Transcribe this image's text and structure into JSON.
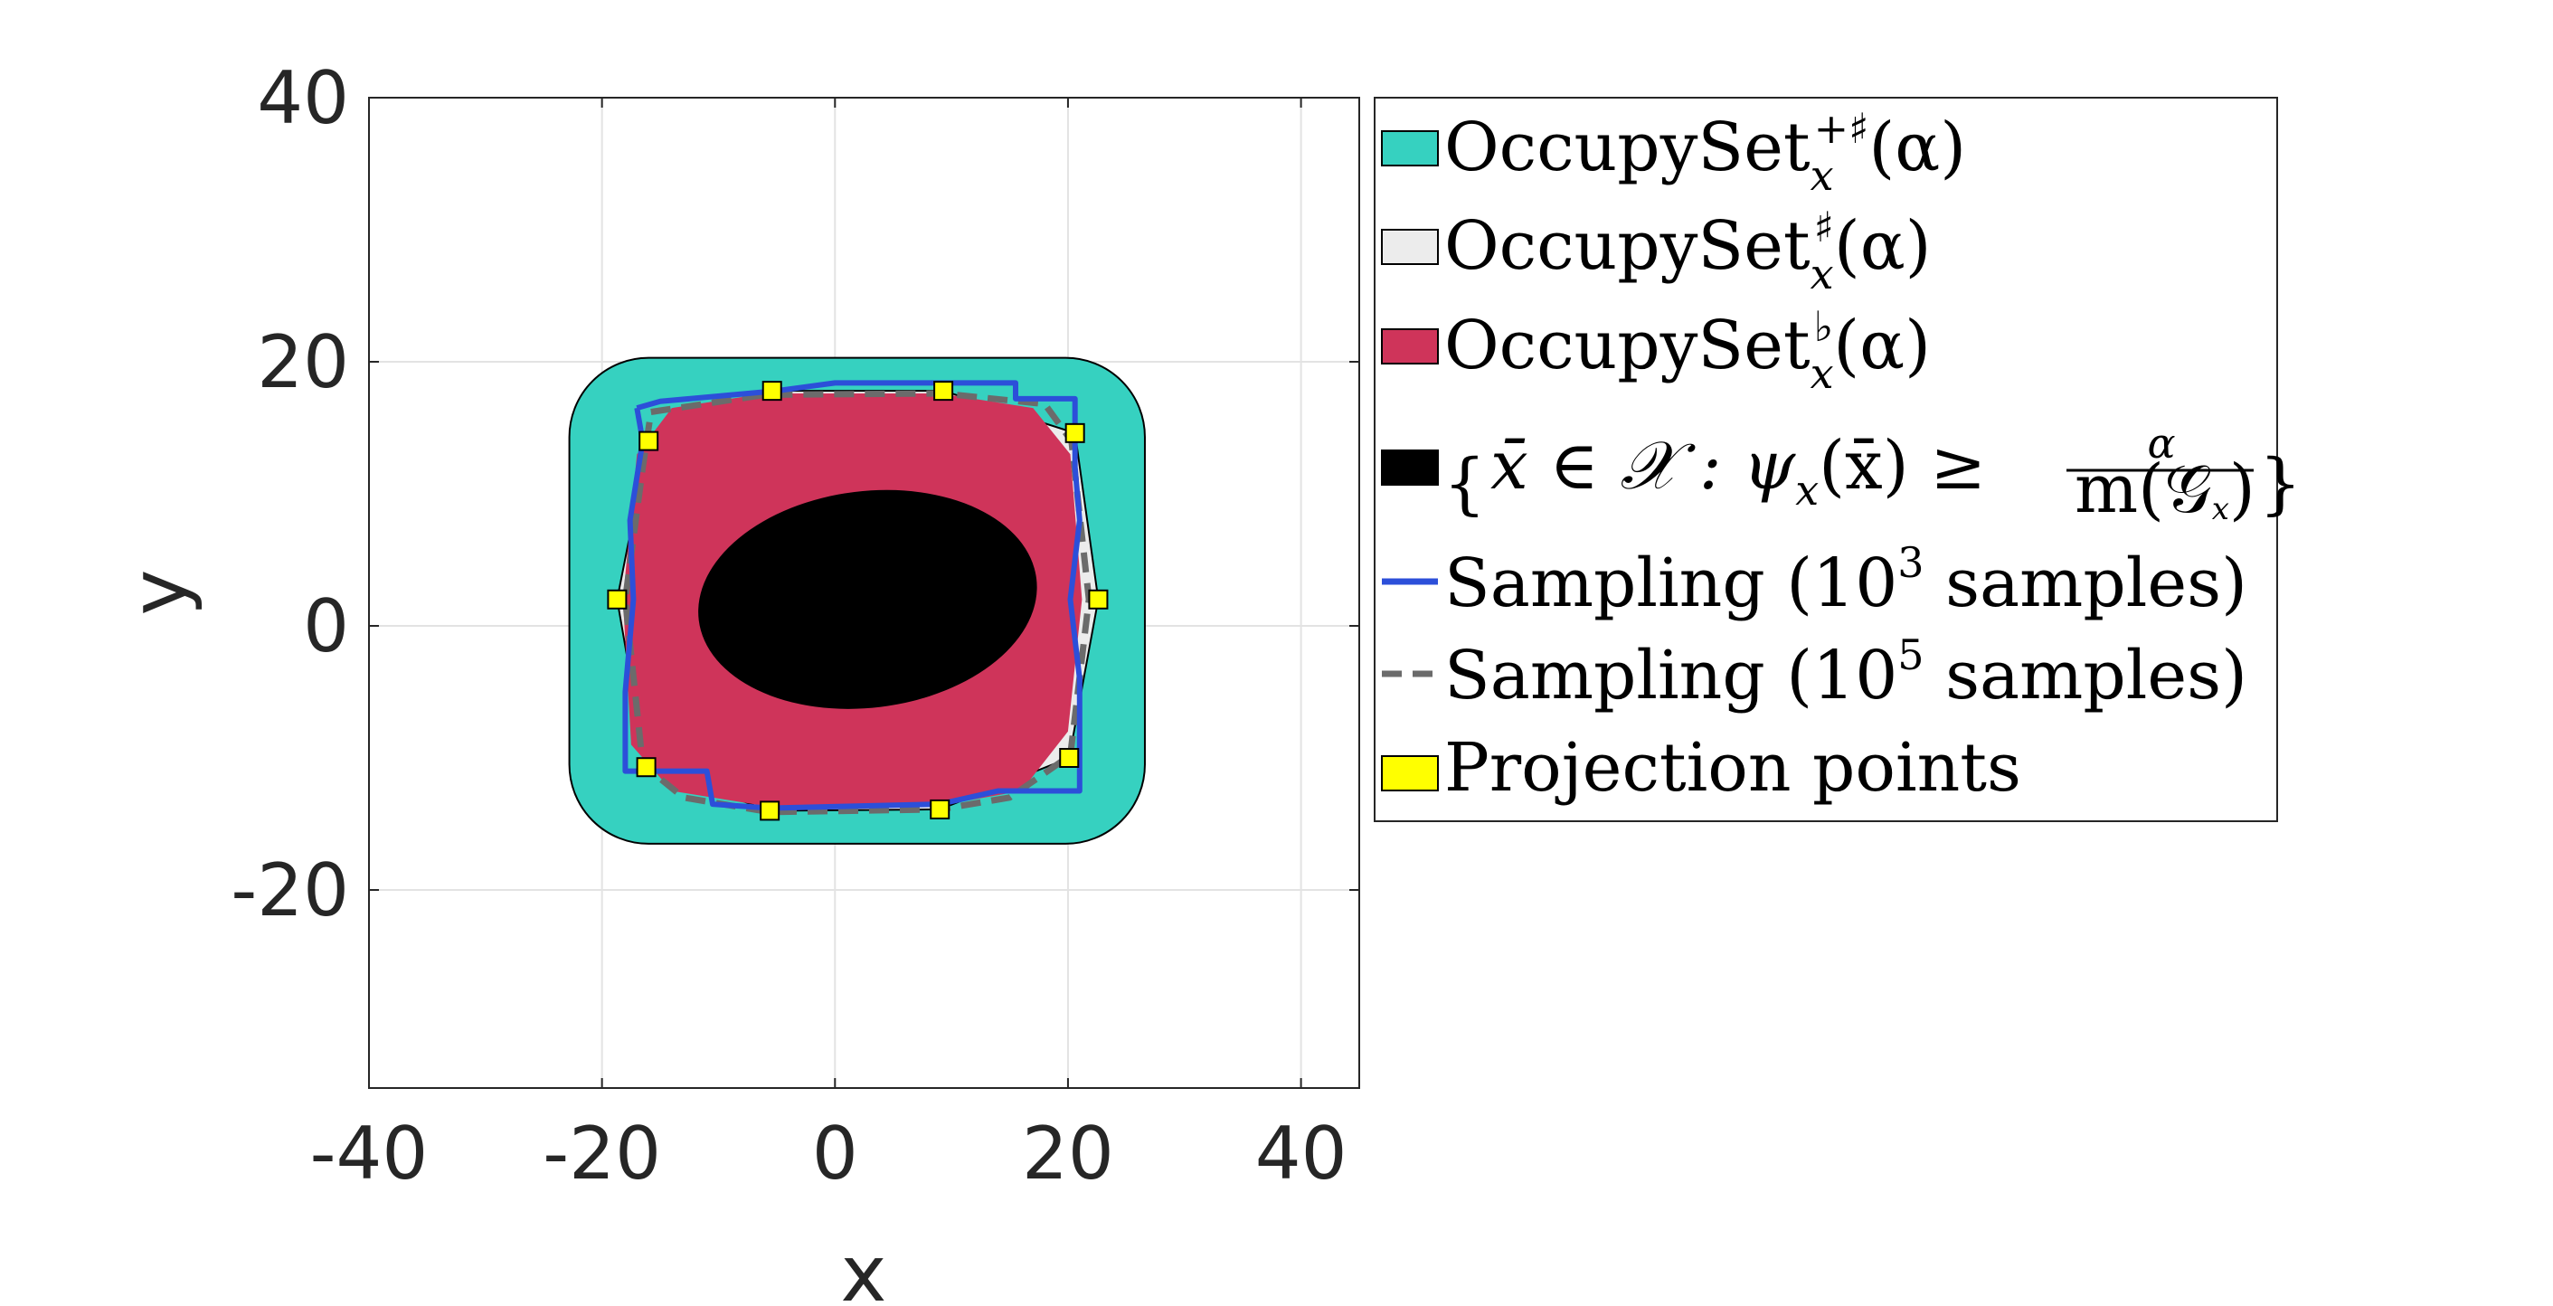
{
  "chart_data": {
    "type": "area",
    "xlabel": "x",
    "ylabel": "y",
    "xlim": [
      -40,
      45
    ],
    "ylim": [
      -35,
      40
    ],
    "xticks": [
      "-40",
      "-20",
      "0",
      "20",
      "40"
    ],
    "yticks": [
      "-20",
      "0",
      "20",
      "40"
    ],
    "xtick_values": [
      -40,
      -20,
      0,
      20,
      40
    ],
    "ytick_values": [
      -20,
      0,
      20,
      40
    ],
    "grid": true,
    "legend_position": "outside-right",
    "colors": {
      "outer": "#36d1c0",
      "inner_hull": "#ececec",
      "under": "#cf345a",
      "superlevel": "#000000",
      "sampling_1e3": "#2c4fd9",
      "sampling_1e5": "#6b6b6b",
      "projection": "#ffff00"
    },
    "series": [
      {
        "key": "outer",
        "name": "OccupySet_x^{+♯}(α)",
        "kind": "rounded-box",
        "x_range": [
          -22.8,
          26.6
        ],
        "y_range": [
          -16.5,
          20.3
        ],
        "corner_radius": 6.8
      },
      {
        "key": "inner_hull",
        "name": "OccupySet_x^{♯}(α)",
        "kind": "polygon",
        "points": [
          [
            -5.4,
            17.8
          ],
          [
            9.3,
            17.8
          ],
          [
            20.6,
            14.6
          ],
          [
            22.6,
            2.0
          ],
          [
            20.1,
            -10.0
          ],
          [
            9.0,
            -13.9
          ],
          [
            -5.6,
            -14.0
          ],
          [
            -16.2,
            -10.7
          ],
          [
            -18.7,
            2.0
          ],
          [
            -16.0,
            14.0
          ]
        ]
      },
      {
        "key": "under",
        "name": "OccupySet_x^{♭}(α)",
        "kind": "polygon",
        "points": [
          [
            -17.0,
            13.0
          ],
          [
            -14.0,
            16.5
          ],
          [
            -6.0,
            17.6
          ],
          [
            9.0,
            17.6
          ],
          [
            17.0,
            16.5
          ],
          [
            20.2,
            13.0
          ],
          [
            21.2,
            2.0
          ],
          [
            20.0,
            -8.0
          ],
          [
            16.0,
            -12.5
          ],
          [
            9.0,
            -13.6
          ],
          [
            -5.6,
            -13.7
          ],
          [
            -14.0,
            -12.5
          ],
          [
            -17.5,
            -9.0
          ],
          [
            -18.2,
            2.0
          ]
        ]
      },
      {
        "key": "superlevel",
        "name": "{x̄ ∈ 𝒳 : ψ_x(x̄) ≥ α / m(𝒢_x)}",
        "kind": "ellipse",
        "center": [
          2.8,
          2.0
        ],
        "radii": [
          14.6,
          8.2
        ],
        "rotation_deg": 7
      },
      {
        "key": "sampling_1e3",
        "name": "Sampling (10^3 samples)",
        "kind": "line",
        "points": [
          [
            -17.0,
            16.5
          ],
          [
            -15.0,
            17.0
          ],
          [
            -5.0,
            17.8
          ],
          [
            0.0,
            18.4
          ],
          [
            15.5,
            18.4
          ],
          [
            15.5,
            17.2
          ],
          [
            20.6,
            17.2
          ],
          [
            20.6,
            12.0
          ],
          [
            21.0,
            8.0
          ],
          [
            20.2,
            2.0
          ],
          [
            21.0,
            -4.0
          ],
          [
            21.0,
            -12.5
          ],
          [
            14.0,
            -12.5
          ],
          [
            9.0,
            -13.5
          ],
          [
            -5.6,
            -13.8
          ],
          [
            -10.5,
            -13.5
          ],
          [
            -11.0,
            -11.0
          ],
          [
            -18.0,
            -11.0
          ],
          [
            -18.0,
            -5.0
          ],
          [
            -17.3,
            2.0
          ],
          [
            -17.6,
            8.0
          ],
          [
            -16.5,
            14.0
          ],
          [
            -17.0,
            16.5
          ]
        ]
      },
      {
        "key": "sampling_1e5",
        "name": "Sampling (10^5 samples)",
        "kind": "dashed-line",
        "points": [
          [
            -15.8,
            16.2
          ],
          [
            -6.0,
            17.5
          ],
          [
            9.2,
            17.6
          ],
          [
            18.0,
            16.8
          ],
          [
            20.3,
            14.0
          ],
          [
            21.8,
            2.0
          ],
          [
            20.2,
            -9.8
          ],
          [
            15.0,
            -13.0
          ],
          [
            9.0,
            -13.9
          ],
          [
            -5.6,
            -14.1
          ],
          [
            -13.0,
            -13.0
          ],
          [
            -16.5,
            -10.5
          ],
          [
            -18.0,
            2.0
          ],
          [
            -16.5,
            12.0
          ],
          [
            -15.8,
            16.2
          ]
        ]
      },
      {
        "key": "projection",
        "name": "Projection points",
        "kind": "markers",
        "points": [
          [
            -5.4,
            17.8
          ],
          [
            9.3,
            17.8
          ],
          [
            20.6,
            14.6
          ],
          [
            22.6,
            2.0
          ],
          [
            20.1,
            -10.0
          ],
          [
            9.0,
            -13.9
          ],
          [
            -5.6,
            -14.0
          ],
          [
            -16.2,
            -10.7
          ],
          [
            -18.7,
            2.0
          ],
          [
            -16.0,
            14.0
          ]
        ]
      }
    ]
  },
  "legend": {
    "items": [
      {
        "key": "outer",
        "base": "OccupySet",
        "sup": "+♯",
        "sub": "x",
        "arg": "(α)"
      },
      {
        "key": "inner_hull",
        "base": "OccupySet",
        "sup": "♯",
        "sub": "x",
        "arg": "(α)"
      },
      {
        "key": "under",
        "base": "OccupySet",
        "sup": "♭",
        "sub": "x",
        "arg": "(α)"
      },
      {
        "key": "superlevel",
        "lhs": "x̄ ∈ 𝒳 : ψ",
        "lhs_sub": "x",
        "mid": "(x̄) ≥",
        "frac_num": "α",
        "frac_den": "m(𝒢",
        "frac_den_sub": "x",
        "frac_den_close": ")"
      },
      {
        "key": "sampling_1e3",
        "pre": "Sampling (10",
        "exp": "3",
        "post": " samples)"
      },
      {
        "key": "sampling_1e5",
        "pre": "Sampling (10",
        "exp": "5",
        "post": " samples)"
      },
      {
        "key": "projection",
        "text": "Projection points"
      }
    ]
  }
}
